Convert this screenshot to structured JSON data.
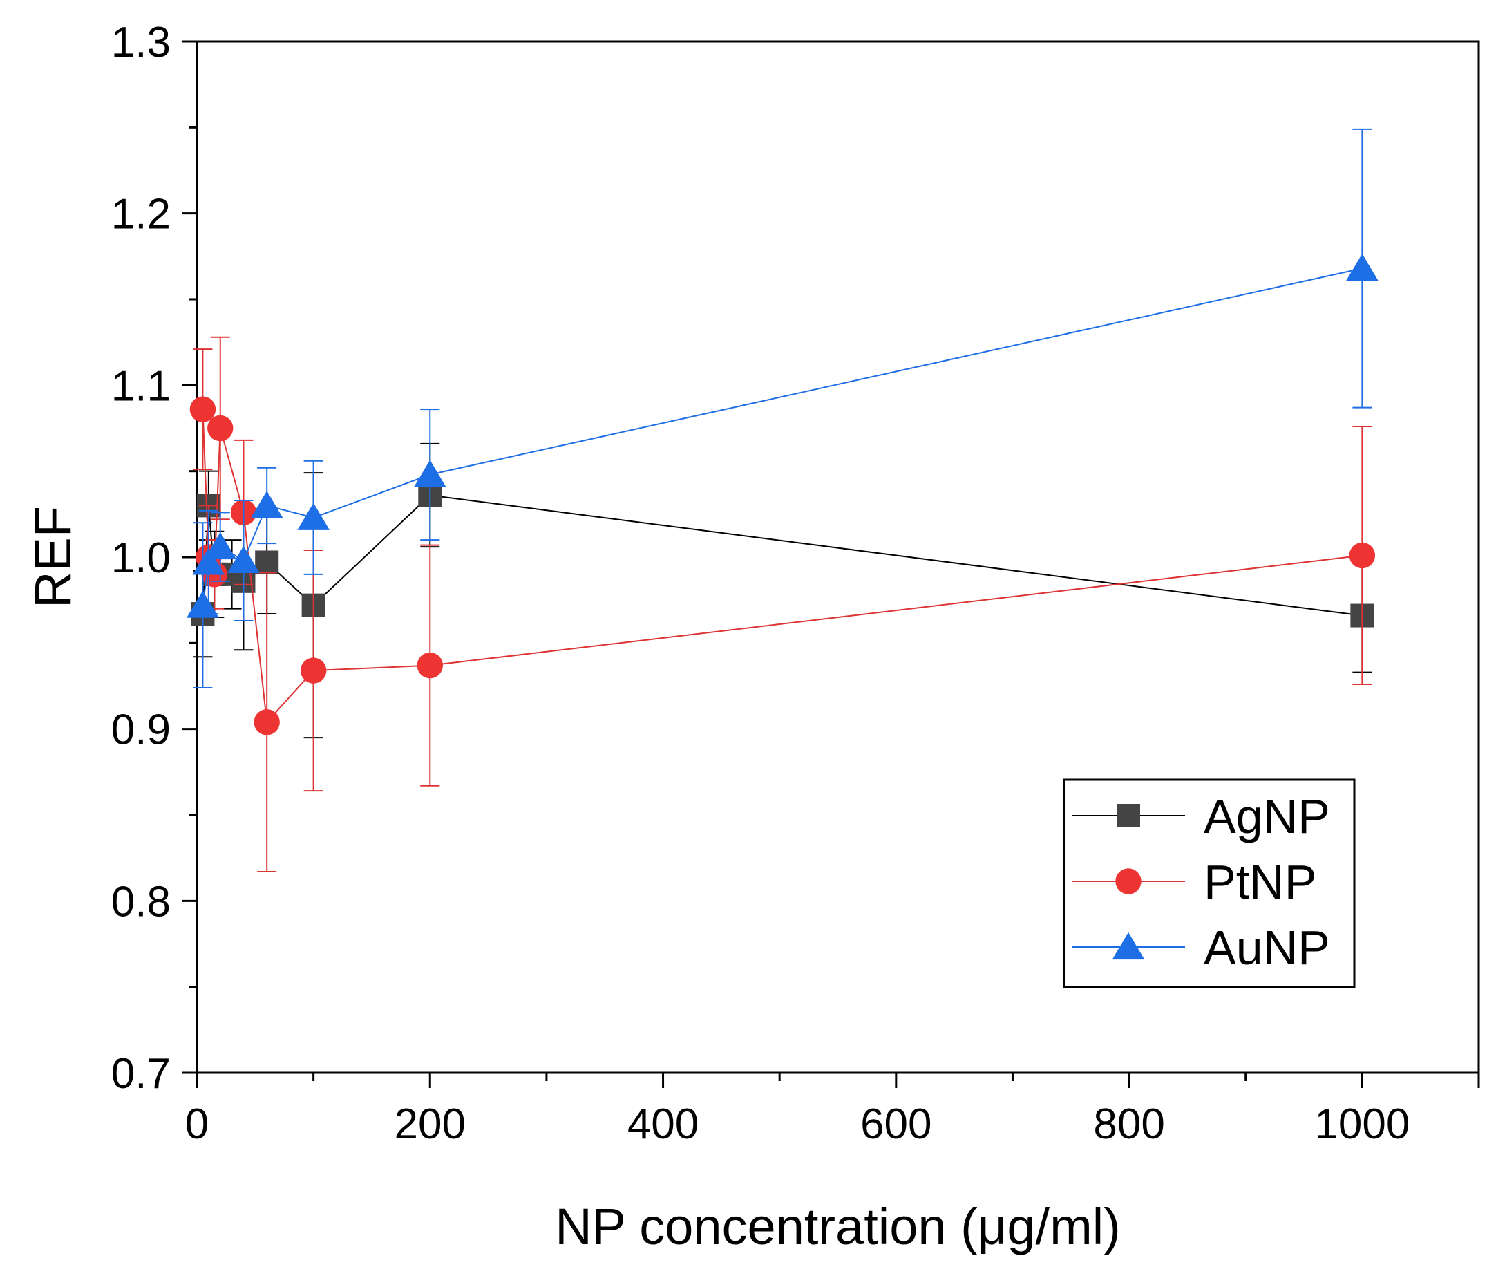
{
  "chart_data": {
    "type": "line",
    "title": "",
    "xlabel": "NP concentration (μg/ml)",
    "ylabel": "REF",
    "xlim": [
      0,
      1100
    ],
    "ylim": [
      0.7,
      1.3
    ],
    "xticks": [
      0,
      200,
      400,
      600,
      800,
      1000
    ],
    "xtick_labels": [
      "0",
      "200",
      "400",
      "600",
      "800",
      "1000"
    ],
    "yticks": [
      0.7,
      0.8,
      0.9,
      1.0,
      1.1,
      1.2,
      1.3
    ],
    "ytick_labels": [
      "0.7",
      "0.8",
      "0.9",
      "1.0",
      "1.1",
      "1.2",
      "1.3"
    ],
    "legend_position": "bottom-right",
    "series": [
      {
        "name": "AgNP",
        "marker": "square",
        "color": "#444444",
        "line_color": "#000000",
        "x": [
          5,
          10,
          15,
          30,
          40,
          60,
          100,
          200,
          1000
        ],
        "y": [
          0.967,
          1.03,
          0.99,
          0.99,
          0.986,
          0.997,
          0.972,
          1.036,
          0.966
        ],
        "err": [
          0.025,
          0.02,
          0.025,
          0.02,
          0.04,
          0.03,
          0.077,
          0.03,
          0.033
        ]
      },
      {
        "name": "PtNP",
        "marker": "circle",
        "color": "#ee3333",
        "line_color": "#dd3333",
        "x": [
          5,
          10,
          15,
          20,
          40,
          60,
          100,
          200,
          1000
        ],
        "y": [
          1.086,
          1.0,
          0.99,
          1.075,
          1.026,
          0.904,
          0.934,
          0.937,
          1.001
        ],
        "err": [
          0.035,
          0.03,
          0.02,
          0.053,
          0.042,
          0.087,
          0.07,
          0.07,
          0.075
        ]
      },
      {
        "name": "AuNP",
        "marker": "triangle",
        "color": "#1e6ee6",
        "line_color": "#1e6ee6",
        "x": [
          5,
          10,
          20,
          40,
          60,
          100,
          200,
          1000
        ],
        "y": [
          0.972,
          0.997,
          1.006,
          0.998,
          1.03,
          1.023,
          1.048,
          1.168
        ],
        "err": [
          0.048,
          0.03,
          0.02,
          0.035,
          0.022,
          0.033,
          0.038,
          0.081
        ]
      }
    ]
  }
}
